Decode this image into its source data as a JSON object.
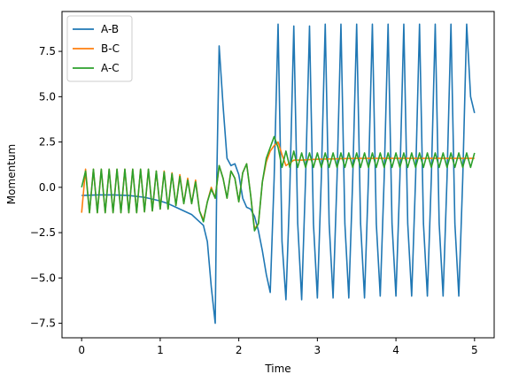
{
  "chart_data": {
    "type": "line",
    "xlabel": "Time",
    "ylabel": "Momentum",
    "xlim": [
      -0.25,
      5.25
    ],
    "ylim": [
      -8.3,
      9.7
    ],
    "xticks": [
      0,
      1,
      2,
      3,
      4,
      5
    ],
    "xtick_labels": [
      "0",
      "1",
      "2",
      "3",
      "4",
      "5"
    ],
    "yticks": [
      -7.5,
      -5.0,
      -2.5,
      0.0,
      2.5,
      5.0,
      7.5
    ],
    "ytick_labels": [
      "−7.5",
      "−5.0",
      "−2.5",
      "0.0",
      "2.5",
      "5.0",
      "7.5"
    ],
    "grid": false,
    "legend_position": "upper-left",
    "series": [
      {
        "name": "A-B",
        "color": "#1f77b4",
        "x": [
          0,
          0.2,
          0.4,
          0.6,
          0.8,
          1.0,
          1.1,
          1.2,
          1.3,
          1.4,
          1.5,
          1.55,
          1.6,
          1.65,
          1.7,
          1.72,
          1.75,
          1.8,
          1.85,
          1.9,
          1.95,
          2.0,
          2.05,
          2.1,
          2.15,
          2.2,
          2.25,
          2.3,
          2.35,
          2.4,
          2.45,
          2.5,
          2.55,
          2.6,
          2.65,
          2.7,
          2.75,
          2.8,
          2.85,
          2.9,
          2.95,
          3.0,
          3.05,
          3.1,
          3.15,
          3.2,
          3.25,
          3.3,
          3.35,
          3.4,
          3.45,
          3.5,
          3.55,
          3.6,
          3.65,
          3.7,
          3.75,
          3.8,
          3.85,
          3.9,
          3.95,
          4.0,
          4.05,
          4.1,
          4.15,
          4.2,
          4.25,
          4.3,
          4.35,
          4.4,
          4.45,
          4.5,
          4.55,
          4.6,
          4.65,
          4.7,
          4.75,
          4.8,
          4.85,
          4.9,
          4.95,
          5.0
        ],
        "y": [
          -0.45,
          -0.42,
          -0.42,
          -0.45,
          -0.55,
          -0.75,
          -0.9,
          -1.1,
          -1.3,
          -1.5,
          -1.9,
          -2.1,
          -3.0,
          -5.5,
          -7.5,
          0.5,
          7.8,
          4.5,
          1.6,
          1.2,
          1.3,
          0.7,
          -0.6,
          -1.1,
          -1.2,
          -1.6,
          -2.4,
          -3.5,
          -4.8,
          -5.8,
          0.5,
          9.0,
          -3.0,
          -6.2,
          0.0,
          8.9,
          -2.0,
          -6.2,
          0.5,
          8.9,
          -2.0,
          -6.1,
          0.5,
          9.0,
          -2.0,
          -6.1,
          0.5,
          9.0,
          -2.0,
          -6.1,
          0.5,
          9.0,
          -2.0,
          -6.1,
          0.5,
          9.0,
          -2.0,
          -6.0,
          0.5,
          9.0,
          -2.0,
          -6.0,
          0.5,
          9.0,
          -2.0,
          -6.0,
          0.5,
          9.0,
          -2.0,
          -6.0,
          0.5,
          9.0,
          -2.0,
          -6.0,
          0.5,
          9.0,
          -2.0,
          -6.0,
          0.5,
          9.0,
          5.0,
          4.1
        ]
      },
      {
        "name": "B-C",
        "color": "#ff7f0e",
        "x": [
          0,
          0.05,
          0.1,
          0.15,
          0.2,
          0.25,
          0.3,
          0.35,
          0.4,
          0.45,
          0.5,
          0.55,
          0.6,
          0.65,
          0.7,
          0.75,
          0.8,
          0.85,
          0.9,
          0.95,
          1.0,
          1.05,
          1.1,
          1.15,
          1.2,
          1.25,
          1.3,
          1.35,
          1.4,
          1.45,
          1.5,
          1.55,
          1.6,
          1.65,
          1.7,
          1.75,
          1.8,
          1.85,
          1.9,
          1.95,
          2.0,
          2.05,
          2.1,
          2.15,
          2.2,
          2.25,
          2.3,
          2.35,
          2.4,
          2.45,
          2.5,
          2.55,
          2.6,
          2.7,
          2.8,
          3.0,
          3.5,
          4.0,
          4.5,
          5.0
        ],
        "y": [
          -1.4,
          1.0,
          -1.4,
          1.0,
          -1.4,
          1.0,
          -1.4,
          1.0,
          -1.4,
          1.0,
          -1.4,
          1.0,
          -1.4,
          1.0,
          -1.4,
          1.0,
          -1.35,
          1.0,
          -1.3,
          0.9,
          -1.2,
          0.9,
          -1.2,
          0.8,
          -1.0,
          0.7,
          -0.9,
          0.5,
          -0.9,
          0.4,
          -1.3,
          -1.8,
          -0.8,
          0.0,
          -0.6,
          1.2,
          0.5,
          -0.6,
          0.9,
          0.5,
          -0.8,
          0.8,
          1.3,
          -0.4,
          -2.3,
          -2.0,
          0.3,
          1.4,
          2.0,
          2.3,
          2.5,
          1.8,
          1.2,
          1.5,
          1.5,
          1.55,
          1.6,
          1.6,
          1.6,
          1.6
        ]
      },
      {
        "name": "A-C",
        "color": "#2ca02c",
        "x": [
          0,
          0.05,
          0.1,
          0.15,
          0.2,
          0.25,
          0.3,
          0.35,
          0.4,
          0.45,
          0.5,
          0.55,
          0.6,
          0.65,
          0.7,
          0.75,
          0.8,
          0.85,
          0.9,
          0.95,
          1.0,
          1.05,
          1.1,
          1.15,
          1.2,
          1.25,
          1.3,
          1.35,
          1.4,
          1.45,
          1.5,
          1.55,
          1.6,
          1.65,
          1.7,
          1.75,
          1.8,
          1.85,
          1.9,
          1.95,
          2.0,
          2.05,
          2.1,
          2.15,
          2.2,
          2.25,
          2.3,
          2.35,
          2.4,
          2.45,
          2.5,
          2.55,
          2.6,
          2.65,
          2.7,
          2.75,
          2.8,
          2.85,
          2.9,
          2.95,
          3.0,
          3.05,
          3.1,
          3.15,
          3.2,
          3.25,
          3.3,
          3.35,
          3.4,
          3.45,
          3.5,
          3.55,
          3.6,
          3.65,
          3.7,
          3.75,
          3.8,
          3.85,
          3.9,
          3.95,
          4.0,
          4.05,
          4.1,
          4.15,
          4.2,
          4.25,
          4.3,
          4.35,
          4.4,
          4.45,
          4.5,
          4.55,
          4.6,
          4.65,
          4.7,
          4.75,
          4.8,
          4.85,
          4.9,
          4.95,
          5.0
        ],
        "y": [
          0.0,
          0.9,
          -1.4,
          1.0,
          -1.4,
          1.0,
          -1.4,
          1.0,
          -1.4,
          1.0,
          -1.4,
          1.0,
          -1.4,
          1.0,
          -1.4,
          1.0,
          -1.35,
          1.0,
          -1.3,
          0.9,
          -1.2,
          0.85,
          -1.2,
          0.75,
          -1.0,
          0.6,
          -0.9,
          0.4,
          -0.9,
          0.3,
          -1.3,
          -1.9,
          -0.8,
          -0.1,
          -0.6,
          1.2,
          0.5,
          -0.6,
          0.9,
          0.5,
          -0.8,
          0.8,
          1.3,
          -0.4,
          -2.4,
          -2.0,
          0.3,
          1.6,
          2.2,
          2.8,
          2.2,
          1.1,
          2.0,
          1.1,
          2.0,
          1.1,
          1.9,
          1.1,
          1.9,
          1.1,
          1.9,
          1.1,
          1.9,
          1.1,
          1.9,
          1.1,
          1.9,
          1.1,
          1.9,
          1.1,
          1.9,
          1.1,
          1.9,
          1.1,
          1.9,
          1.1,
          1.9,
          1.1,
          1.9,
          1.1,
          1.9,
          1.1,
          1.9,
          1.1,
          1.9,
          1.1,
          1.9,
          1.1,
          1.9,
          1.1,
          1.9,
          1.1,
          1.9,
          1.1,
          1.9,
          1.1,
          1.9,
          1.1,
          1.9,
          1.1,
          1.9
        ]
      }
    ]
  }
}
